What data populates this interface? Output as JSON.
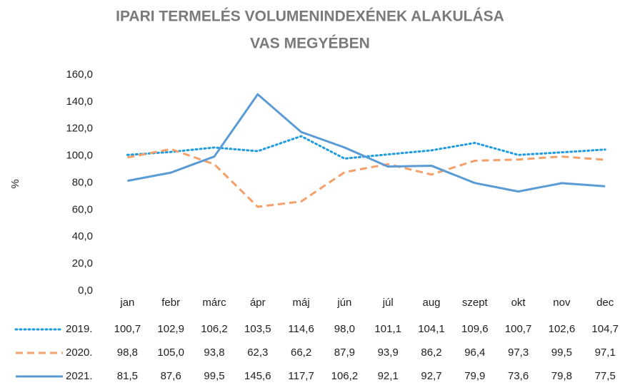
{
  "chart_data": {
    "type": "line",
    "title": "IPARI TERMELÉS VOLUMENINDEXÉNEK ALAKULÁSA",
    "subtitle": "VAS MEGYÉBEN",
    "y_label": "%",
    "categories": [
      "jan",
      "febr",
      "márc",
      "ápr",
      "máj",
      "jún",
      "júl",
      "aug",
      "szept",
      "okt",
      "nov",
      "dec"
    ],
    "series": [
      {
        "name": "2019.",
        "color": "#1f9be0",
        "dash": "dotted",
        "values": [
          100.7,
          102.9,
          106.2,
          103.5,
          114.6,
          98.0,
          101.1,
          104.1,
          109.6,
          100.7,
          102.6,
          104.7
        ],
        "value_labels": [
          "100,7",
          "102,9",
          "106,2",
          "103,5",
          "114,6",
          "98,0",
          "101,1",
          "104,1",
          "109,6",
          "100,7",
          "102,6",
          "104,7"
        ]
      },
      {
        "name": "2020.",
        "color": "#f4a06a",
        "dash": "dashed",
        "values": [
          98.8,
          105.0,
          93.8,
          62.3,
          66.2,
          87.9,
          93.9,
          86.2,
          96.4,
          97.3,
          99.5,
          97.1
        ],
        "value_labels": [
          "98,8",
          "105,0",
          "93,8",
          "62,3",
          "66,2",
          "87,9",
          "93,9",
          "86,2",
          "96,4",
          "97,3",
          "99,5",
          "97,1"
        ]
      },
      {
        "name": "2021.",
        "color": "#5b9bd5",
        "dash": "solid",
        "values": [
          81.5,
          87.6,
          99.5,
          145.6,
          117.7,
          106.2,
          92.1,
          92.7,
          79.9,
          73.6,
          79.8,
          77.5
        ],
        "value_labels": [
          "81,5",
          "87,6",
          "99,5",
          "145,6",
          "117,7",
          "106,2",
          "92,1",
          "92,7",
          "79,9",
          "73,6",
          "79,8",
          "77,5"
        ]
      }
    ],
    "ylim": [
      0,
      160
    ],
    "yticks": [
      {
        "value": 0,
        "label": "0,0"
      },
      {
        "value": 20,
        "label": "20,0"
      },
      {
        "value": 40,
        "label": "40,0"
      },
      {
        "value": 60,
        "label": "60,0"
      },
      {
        "value": 80,
        "label": "80,0"
      },
      {
        "value": 100,
        "label": "100,0"
      },
      {
        "value": 120,
        "label": "120,0"
      },
      {
        "value": 140,
        "label": "140,0"
      },
      {
        "value": 160,
        "label": "160,0"
      }
    ],
    "grid": false
  }
}
